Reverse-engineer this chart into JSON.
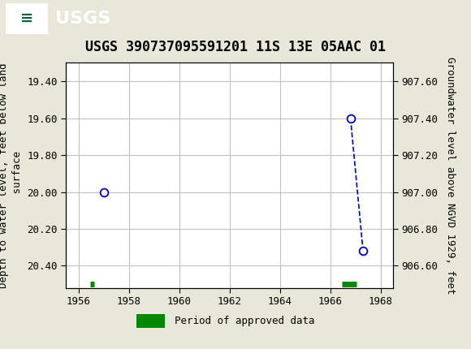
{
  "title": "USGS 390737095591201 11S 13E 05AAC 01",
  "ylabel_left": "Depth to water level, feet below land\n surface",
  "ylabel_right": "Groundwater level above NGVD 1929, feet",
  "xlim": [
    1955.5,
    1968.5
  ],
  "ylim_left": [
    20.52,
    19.3
  ],
  "ylim_right": [
    906.48,
    907.7
  ],
  "yticks_left": [
    19.4,
    19.6,
    19.8,
    20.0,
    20.2,
    20.4
  ],
  "yticks_right": [
    906.6,
    906.8,
    907.0,
    907.2,
    907.4,
    907.6
  ],
  "xticks": [
    1956,
    1958,
    1960,
    1962,
    1964,
    1966,
    1968
  ],
  "data_points_x": [
    1957.0,
    1966.8,
    1967.3
  ],
  "data_points_y": [
    20.0,
    19.6,
    20.32
  ],
  "period_bars": [
    {
      "x_start": 1956.45,
      "x_end": 1956.63,
      "y": 20.5
    },
    {
      "x_start": 1966.45,
      "x_end": 1967.05,
      "y": 20.5
    }
  ],
  "line_color": "#0000cc",
  "point_color": "#0000cc",
  "period_color": "#008800",
  "background_color": "#e8e8d8",
  "plot_bg_color": "#ffffff",
  "header_color": "#006633",
  "grid_color": "#c0c0c0",
  "font_family": "monospace",
  "title_fontsize": 12,
  "tick_fontsize": 9,
  "label_fontsize": 9,
  "legend_label": "Period of approved data"
}
